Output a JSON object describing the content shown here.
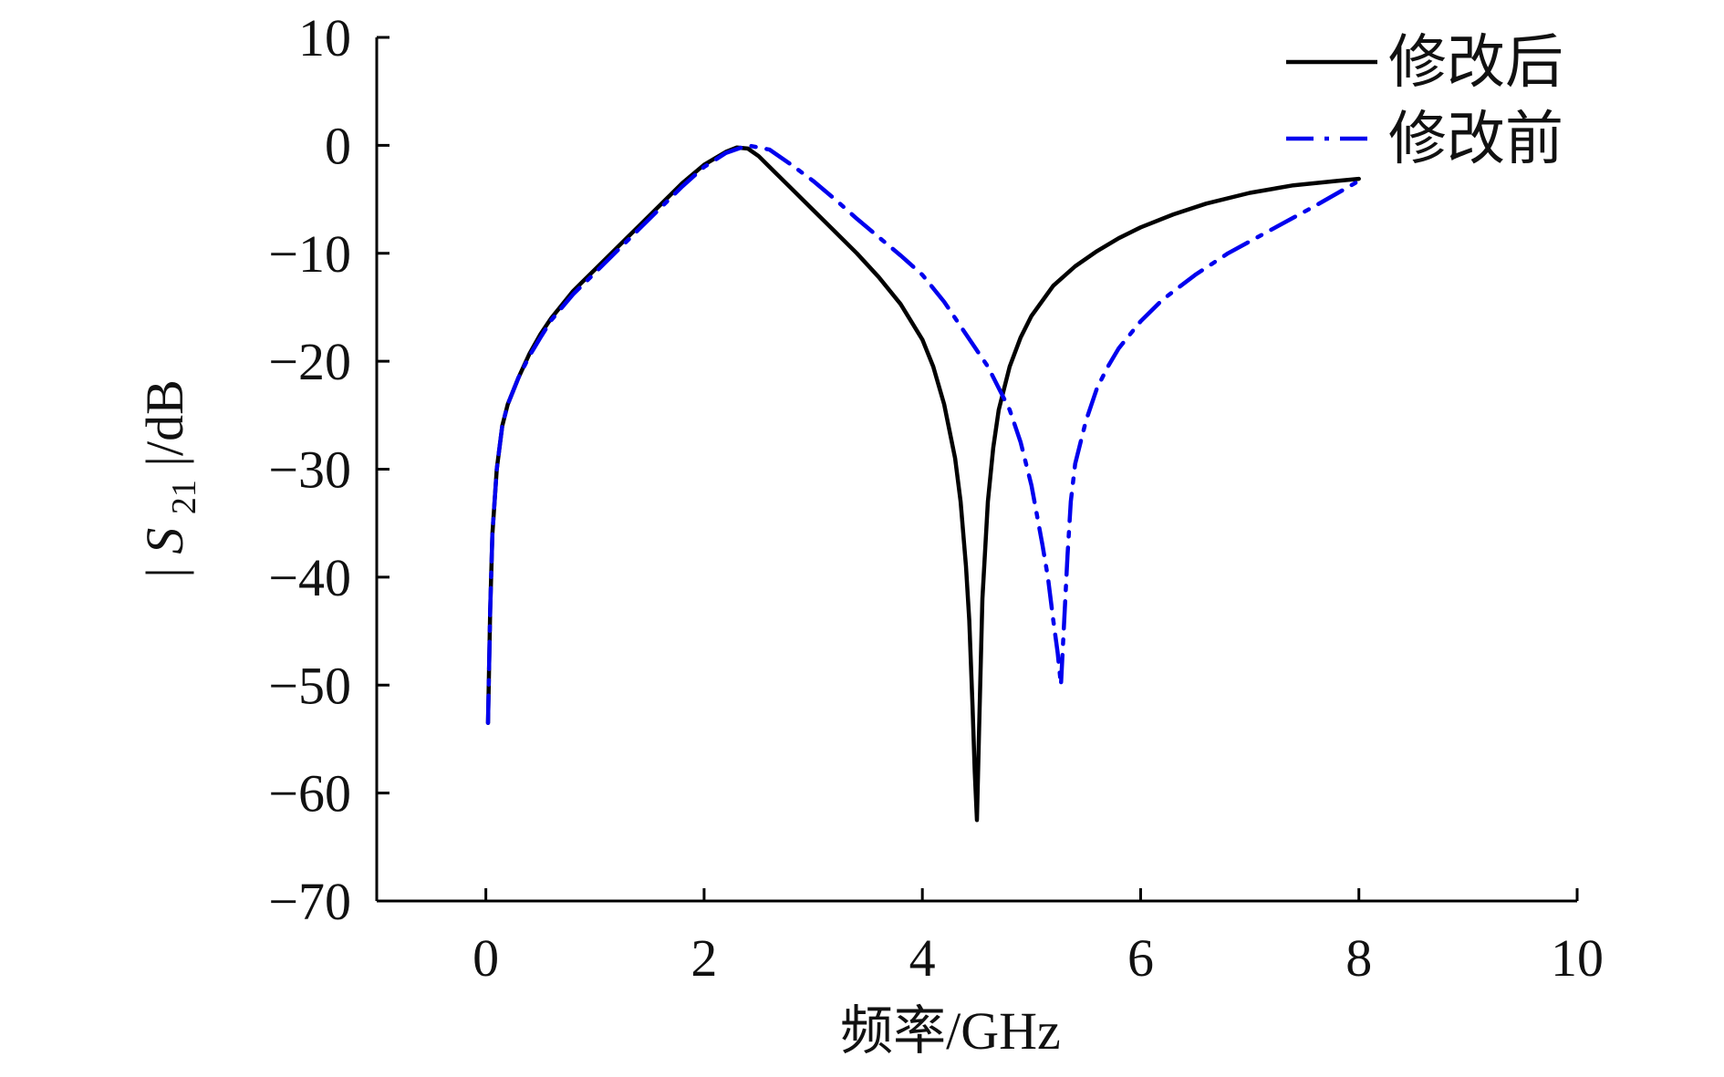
{
  "chart_data": {
    "type": "line",
    "title": "",
    "xlabel": "频率/GHz",
    "ylabel": {
      "prefix": "|",
      "symbol": "S",
      "subscript": "21",
      "suffix": "|/dB"
    },
    "xlim": [
      -1,
      10
    ],
    "ylim": [
      -70,
      10
    ],
    "x_ticks": [
      0,
      2,
      4,
      6,
      8,
      10
    ],
    "x_tick_labels": [
      "0",
      "2",
      "4",
      "6",
      "8",
      "10"
    ],
    "y_ticks": [
      10,
      0,
      -10,
      -20,
      -30,
      -40,
      -50,
      -60,
      -70
    ],
    "y_tick_labels": [
      "10",
      "0",
      "−10",
      "−20",
      "−30",
      "−40",
      "−50",
      "−60",
      "−70"
    ],
    "grid": false,
    "legend_position": "top-right",
    "series": [
      {
        "name": "修改后",
        "color": "#000000",
        "style": "solid",
        "x": [
          0.02,
          0.04,
          0.06,
          0.1,
          0.15,
          0.2,
          0.3,
          0.4,
          0.5,
          0.6,
          0.8,
          1.0,
          1.2,
          1.4,
          1.6,
          1.8,
          2.0,
          2.1,
          2.2,
          2.3,
          2.4,
          2.5,
          2.6,
          2.8,
          3.0,
          3.2,
          3.4,
          3.6,
          3.8,
          4.0,
          4.1,
          4.2,
          4.3,
          4.35,
          4.4,
          4.43,
          4.46,
          4.48,
          4.5,
          4.52,
          4.55,
          4.6,
          4.65,
          4.7,
          4.8,
          4.9,
          5.0,
          5.2,
          5.4,
          5.6,
          5.8,
          6.0,
          6.3,
          6.6,
          7.0,
          7.4,
          7.8,
          8.0
        ],
        "y": [
          -53.5,
          -43,
          -36,
          -30,
          -26,
          -24,
          -21.5,
          -19.3,
          -17.5,
          -16,
          -13.5,
          -11.5,
          -9.5,
          -7.5,
          -5.5,
          -3.5,
          -1.8,
          -1.2,
          -0.6,
          -0.2,
          -0.3,
          -1.0,
          -2.0,
          -4.0,
          -6.0,
          -8.0,
          -10.0,
          -12.2,
          -14.7,
          -18,
          -20.5,
          -24,
          -29,
          -33,
          -39,
          -44,
          -52,
          -58,
          -62.5,
          -54,
          -42,
          -33,
          -28,
          -24.5,
          -20.5,
          -17.8,
          -15.8,
          -13.0,
          -11.2,
          -9.8,
          -8.6,
          -7.6,
          -6.4,
          -5.4,
          -4.4,
          -3.7,
          -3.3,
          -3.1
        ]
      },
      {
        "name": "修改前",
        "color": "#0000ee",
        "style": "dashdot",
        "x": [
          0.02,
          0.04,
          0.06,
          0.1,
          0.15,
          0.2,
          0.3,
          0.4,
          0.5,
          0.6,
          0.8,
          1.0,
          1.2,
          1.4,
          1.6,
          1.8,
          2.0,
          2.2,
          2.4,
          2.6,
          2.8,
          3.0,
          3.2,
          3.4,
          3.6,
          3.8,
          4.0,
          4.2,
          4.4,
          4.6,
          4.8,
          4.9,
          5.0,
          5.1,
          5.15,
          5.2,
          5.24,
          5.27,
          5.3,
          5.33,
          5.36,
          5.4,
          5.5,
          5.6,
          5.7,
          5.8,
          6.0,
          6.2,
          6.5,
          6.8,
          7.2,
          7.6,
          8.0
        ],
        "y": [
          -53.5,
          -43,
          -36,
          -30,
          -26,
          -24,
          -21.5,
          -19.5,
          -17.8,
          -16.2,
          -13.8,
          -11.8,
          -9.8,
          -7.8,
          -5.8,
          -3.8,
          -2.0,
          -0.7,
          0.0,
          -0.4,
          -1.8,
          -3.3,
          -5.0,
          -6.8,
          -8.5,
          -10.2,
          -12.0,
          -14.5,
          -17.5,
          -20.5,
          -24.5,
          -27.5,
          -31.5,
          -37,
          -40,
          -44,
          -47,
          -50,
          -44,
          -38,
          -33,
          -29.5,
          -25.5,
          -22.5,
          -20.5,
          -18.8,
          -16.3,
          -14.3,
          -12.0,
          -10.0,
          -7.8,
          -5.6,
          -3.3
        ]
      }
    ]
  }
}
